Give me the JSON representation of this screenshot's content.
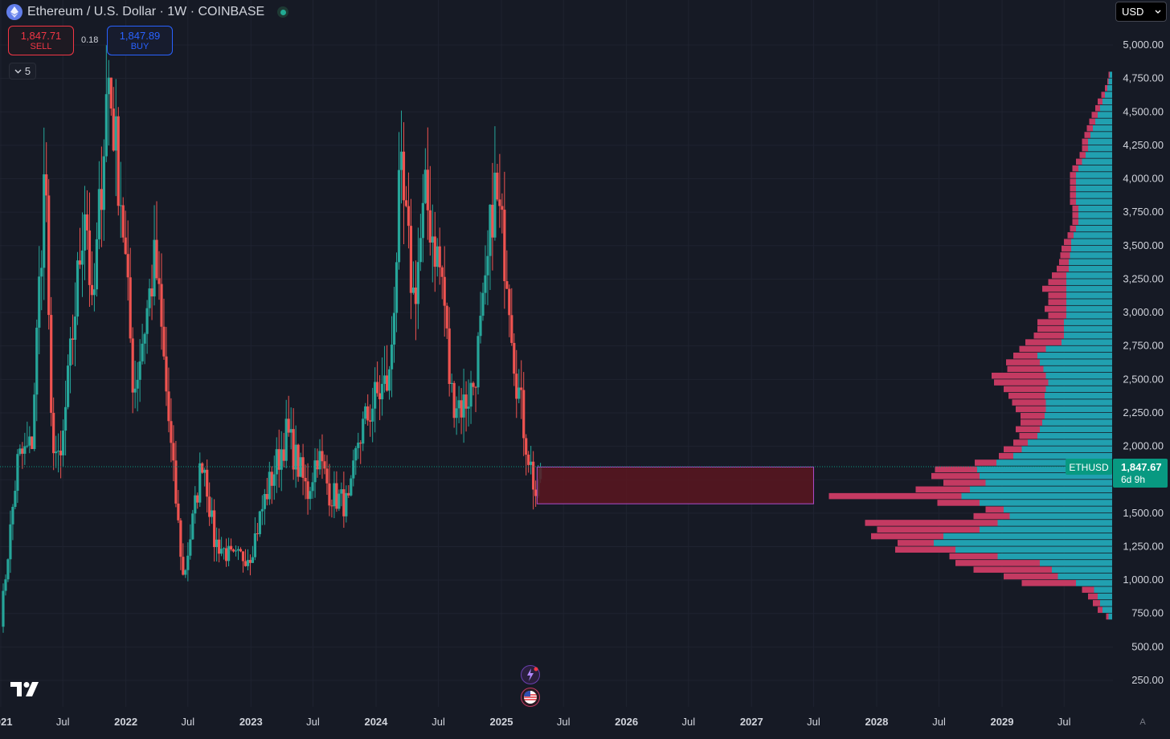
{
  "header": {
    "symbol_title": "Ethereum / U.S. Dollar · 1W · COINBASE"
  },
  "trade": {
    "sell_price": "1,847.71",
    "sell_label": "SELL",
    "spread": "0.18",
    "buy_price": "1,847.89",
    "buy_label": "BUY"
  },
  "indicators_count": "5",
  "currency": "USD",
  "price_label": {
    "symbol": "ETHUSD",
    "price": "1,847.67",
    "countdown": "6d 9h"
  },
  "auto_scale_label": "A",
  "colors": {
    "background": "#161a25",
    "grid": "#1f2330",
    "up": "#26a69a",
    "down": "#ef5350",
    "vp_up": "#21a0b0",
    "vp_down": "#c43a62",
    "zone_fill": "#5a1620",
    "zone_border": "#b04ccc",
    "price_tag": "#089981",
    "text": "#d1d4dc"
  },
  "chart_data": {
    "type": "candlestick",
    "title": "",
    "y_axis": {
      "min": 0,
      "max": 5250,
      "ticks": [
        "5,000.00",
        "4,750.00",
        "4,500.00",
        "4,250.00",
        "4,000.00",
        "3,750.00",
        "3,500.00",
        "3,250.00",
        "3,000.00",
        "2,750.00",
        "2,500.00",
        "2,250.00",
        "2,000.00",
        "1,750.00",
        "1,500.00",
        "1,250.00",
        "1,000.00",
        "750.00",
        "500.00",
        "250.00"
      ]
    },
    "x_axis": {
      "ticks": [
        "2021",
        "Jul",
        "2022",
        "Jul",
        "2023",
        "Jul",
        "2024",
        "Jul",
        "2025",
        "Jul",
        "2026",
        "Jul",
        "2027",
        "Jul",
        "2028",
        "Jul",
        "2029",
        "Jul"
      ],
      "tick_dates": [
        "2021-01-01",
        "2021-07-01",
        "2022-01-01",
        "2022-07-01",
        "2023-01-01",
        "2023-07-01",
        "2024-01-01",
        "2024-07-01",
        "2025-01-01",
        "2025-07-01",
        "2026-01-01",
        "2026-07-01",
        "2027-01-01",
        "2027-07-01",
        "2028-01-01",
        "2028-07-01",
        "2029-01-01",
        "2029-07-01"
      ]
    },
    "price_path": [
      [
        "2021-01-01",
        700
      ],
      [
        "2021-02-20",
        1900
      ],
      [
        "2021-04-01",
        2000
      ],
      [
        "2021-05-12",
        4200
      ],
      [
        "2021-05-25",
        2200
      ],
      [
        "2021-06-22",
        1800
      ],
      [
        "2021-08-10",
        3150
      ],
      [
        "2021-09-05",
        3900
      ],
      [
        "2021-09-25",
        2900
      ],
      [
        "2021-11-10",
        4800
      ],
      [
        "2021-12-20",
        3800
      ],
      [
        "2022-01-24",
        2400
      ],
      [
        "2022-03-28",
        3400
      ],
      [
        "2022-05-12",
        2000
      ],
      [
        "2022-06-18",
        1000
      ],
      [
        "2022-07-25",
        1600
      ],
      [
        "2022-08-14",
        1950
      ],
      [
        "2022-09-15",
        1300
      ],
      [
        "2022-11-10",
        1150
      ],
      [
        "2022-12-31",
        1200
      ],
      [
        "2023-02-15",
        1650
      ],
      [
        "2023-04-16",
        2100
      ],
      [
        "2023-06-15",
        1650
      ],
      [
        "2023-07-14",
        1950
      ],
      [
        "2023-08-20",
        1650
      ],
      [
        "2023-10-15",
        1550
      ],
      [
        "2023-11-10",
        2050
      ],
      [
        "2023-12-28",
        2350
      ],
      [
        "2024-02-10",
        2500
      ],
      [
        "2024-03-12",
        4000
      ],
      [
        "2024-04-20",
        3100
      ],
      [
        "2024-05-25",
        3850
      ],
      [
        "2024-07-15",
        3200
      ],
      [
        "2024-08-05",
        2400
      ],
      [
        "2024-09-10",
        2300
      ],
      [
        "2024-10-10",
        2450
      ],
      [
        "2024-11-15",
        3100
      ],
      [
        "2024-12-10",
        3950
      ],
      [
        "2025-01-20",
        3300
      ],
      [
        "2025-02-10",
        2600
      ],
      [
        "2025-03-10",
        2100
      ],
      [
        "2025-04-15",
        1580
      ],
      [
        "2025-04-28",
        1847.67
      ]
    ],
    "highlight_zone": {
      "x_start": "2025-04-15",
      "x_end": "2027-07-01",
      "y_low": 1570,
      "y_high": 1845
    },
    "last_price": 1847.67,
    "volume_profile": {
      "levels": [
        725,
        775,
        825,
        875,
        925,
        975,
        1025,
        1075,
        1125,
        1175,
        1225,
        1275,
        1325,
        1375,
        1425,
        1475,
        1525,
        1575,
        1625,
        1675,
        1725,
        1775,
        1825,
        1875,
        1925,
        1975,
        2025,
        2075,
        2125,
        2175,
        2225,
        2275,
        2325,
        2375,
        2425,
        2475,
        2525,
        2575,
        2625,
        2675,
        2725,
        2775,
        2825,
        2875,
        2925,
        2975,
        3025,
        3075,
        3125,
        3175,
        3225,
        3275,
        3325,
        3375,
        3425,
        3475,
        3525,
        3575,
        3625,
        3675,
        3725,
        3775,
        3825,
        3875,
        3925,
        3975,
        4025,
        4075,
        4125,
        4175,
        4225,
        4275,
        4325,
        4375,
        4425,
        4475,
        4525,
        4575,
        4625,
        4675,
        4725,
        4775
      ],
      "up_volume": [
        3,
        8,
        10,
        12,
        15,
        30,
        45,
        50,
        60,
        95,
        130,
        148,
        140,
        110,
        95,
        85,
        90,
        110,
        125,
        118,
        105,
        110,
        112,
        96,
        82,
        75,
        70,
        62,
        60,
        58,
        56,
        55,
        55,
        56,
        55,
        53,
        55,
        57,
        60,
        62,
        55,
        42,
        40,
        40,
        40,
        38,
        38,
        38,
        38,
        38,
        38,
        38,
        36,
        36,
        35,
        34,
        34,
        32,
        30,
        28,
        28,
        28,
        30,
        30,
        30,
        30,
        30,
        28,
        25,
        22,
        20,
        20,
        18,
        16,
        14,
        12,
        10,
        8,
        6,
        4,
        3,
        2
      ],
      "down_volume": [
        2,
        4,
        6,
        8,
        10,
        45,
        45,
        65,
        70,
        40,
        50,
        30,
        60,
        85,
        110,
        30,
        15,
        35,
        110,
        45,
        35,
        40,
        35,
        18,
        12,
        15,
        12,
        15,
        20,
        18,
        20,
        25,
        28,
        30,
        35,
        45,
        45,
        30,
        28,
        20,
        22,
        30,
        25,
        22,
        22,
        15,
        18,
        15,
        15,
        20,
        15,
        12,
        10,
        8,
        8,
        8,
        6,
        5,
        5,
        5,
        5,
        5,
        5,
        5,
        5,
        5,
        5,
        5,
        5,
        5,
        5,
        5,
        5,
        5,
        5,
        5,
        4,
        4,
        3,
        2,
        1,
        1
      ]
    }
  }
}
